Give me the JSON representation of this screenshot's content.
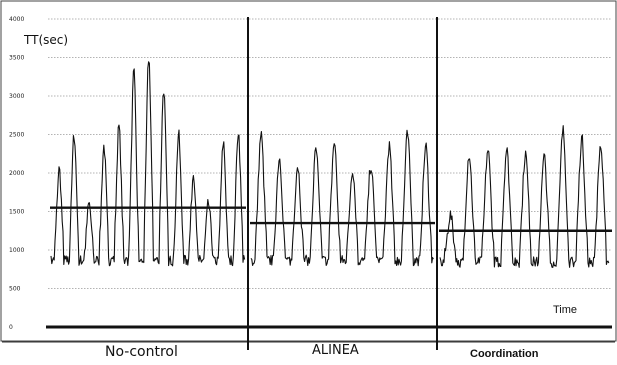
{
  "chart_data": {
    "type": "line",
    "ylabel": "TT(sec)",
    "xlabel": "Time",
    "ylim": [
      0,
      4000
    ],
    "yticks": [
      0,
      500,
      1000,
      1500,
      2000,
      2500,
      3000,
      3500,
      4000
    ],
    "grid": true,
    "segments": [
      {
        "label": "No-control",
        "mean": 1550,
        "peaks": [
          2050,
          2500,
          1600,
          2350,
          2600,
          3300,
          3500,
          3100,
          2500,
          2000,
          1600,
          2400,
          2550
        ],
        "trough": 850
      },
      {
        "label": "ALINEA",
        "mean": 1350,
        "peaks": [
          2500,
          2200,
          2100,
          2300,
          2400,
          2050,
          2100,
          2350,
          2500,
          2350
        ],
        "trough": 850
      },
      {
        "label": "Coordination",
        "mean": 1250,
        "peaks": [
          1450,
          2250,
          2300,
          2300,
          2250,
          2200,
          2550,
          2450,
          2350
        ],
        "trough": 830
      }
    ]
  }
}
